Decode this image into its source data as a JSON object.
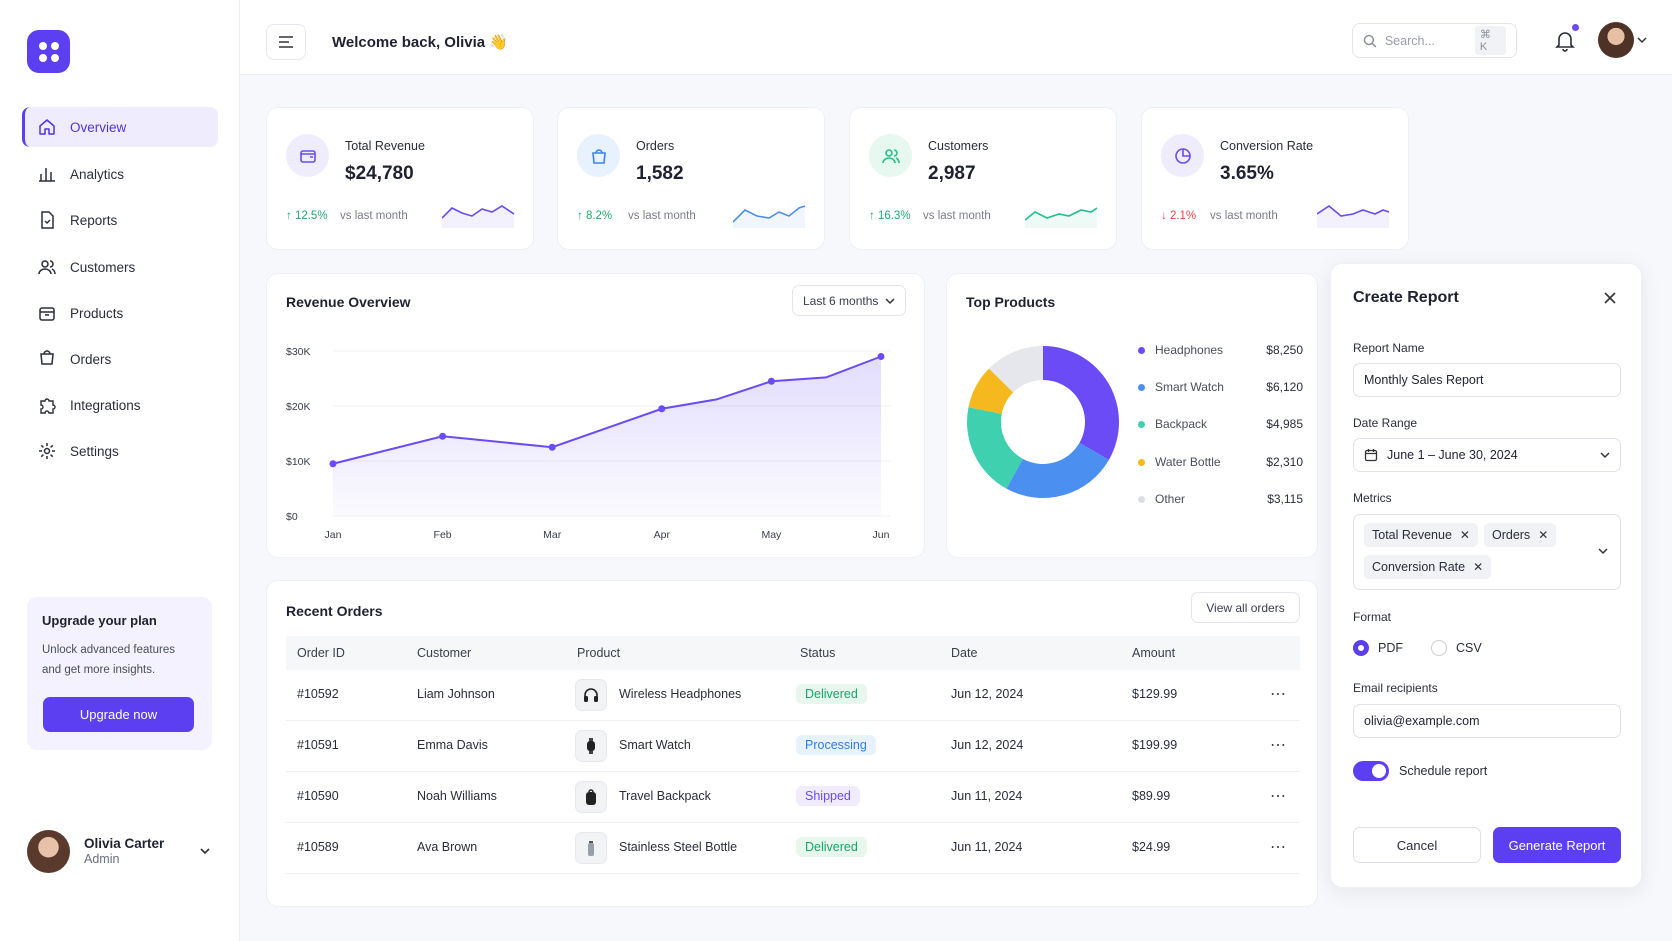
{
  "header": {
    "welcome": "Welcome back, Olivia 👋",
    "search_placeholder": "Search...",
    "search_shortcut": "⌘ K"
  },
  "sidebar": {
    "items": [
      {
        "label": "Overview",
        "icon": "home-icon"
      },
      {
        "label": "Analytics",
        "icon": "bar-chart-icon"
      },
      {
        "label": "Reports",
        "icon": "file-icon"
      },
      {
        "label": "Customers",
        "icon": "users-icon"
      },
      {
        "label": "Products",
        "icon": "box-icon"
      },
      {
        "label": "Orders",
        "icon": "cart-icon"
      },
      {
        "label": "Integrations",
        "icon": "puzzle-icon"
      },
      {
        "label": "Settings",
        "icon": "gear-icon"
      }
    ],
    "upgrade": {
      "title": "Upgrade your plan",
      "text": "Unlock advanced features and get more insights.",
      "button": "Upgrade now"
    },
    "user": {
      "name": "Olivia Carter",
      "role": "Admin"
    }
  },
  "stats": [
    {
      "label": "Total Revenue",
      "value": "$24,780",
      "change": "↑ 12.5%",
      "vs": "vs last month",
      "trend": "up",
      "icon": "wallet-icon",
      "color": "#6a4bf5"
    },
    {
      "label": "Orders",
      "value": "1,582",
      "change": "↑ 8.2%",
      "vs": "vs last month",
      "trend": "up",
      "icon": "bag-icon",
      "color": "#3b82f6"
    },
    {
      "label": "Customers",
      "value": "2,987",
      "change": "↑ 16.3%",
      "vs": "vs last month",
      "trend": "up",
      "icon": "users-icon",
      "color": "#22c08a"
    },
    {
      "label": "Conversion Rate",
      "value": "3.65%",
      "change": "↓ 2.1%",
      "vs": "vs last month",
      "trend": "down",
      "icon": "pie-icon",
      "color": "#6a4bf5"
    }
  ],
  "revenue": {
    "title": "Revenue Overview",
    "range": "Last 6 months",
    "chart_data": {
      "type": "area",
      "x": [
        "Jan",
        "Feb",
        "Mar",
        "Apr",
        "May",
        "Jun"
      ],
      "y_ticks": [
        "$30K",
        "$20K",
        "$10K",
        "$0"
      ],
      "points": [
        {
          "x": "Jan",
          "y": 9500
        },
        {
          "x": "Feb",
          "y": 14500
        },
        {
          "x": "Mar",
          "y": 12500
        },
        {
          "x": "Apr",
          "y": 19500
        },
        {
          "x": "Apr–May",
          "y": 21200
        },
        {
          "x": "May",
          "y": 24500
        },
        {
          "x": "May–Jun",
          "y": 25200
        },
        {
          "x": "Jun",
          "y": 29000
        }
      ],
      "ylim": [
        0,
        30000
      ]
    }
  },
  "top_products": {
    "title": "Top Products",
    "chart_data": {
      "type": "pie",
      "slices": [
        {
          "name": "Headphones",
          "value": 8250,
          "label": "$8,250",
          "color": "#6a4bf5"
        },
        {
          "name": "Smart Watch",
          "value": 6120,
          "label": "$6,120",
          "color": "#4b8ff0"
        },
        {
          "name": "Backpack",
          "value": 4985,
          "label": "$4,985",
          "color": "#3fd0b0"
        },
        {
          "name": "Water Bottle",
          "value": 2310,
          "label": "$2,310",
          "color": "#f5b91f"
        },
        {
          "name": "Other",
          "value": 3115,
          "label": "$3,115",
          "color": "#e6e7ec"
        }
      ]
    }
  },
  "orders": {
    "title": "Recent Orders",
    "view_all": "View all orders",
    "columns": [
      "Order ID",
      "Customer",
      "Product",
      "Status",
      "Date",
      "Amount"
    ],
    "rows": [
      {
        "id": "#10592",
        "customer": "Liam Johnson",
        "product": "Wireless Headphones",
        "status": "Delivered",
        "date": "Jun 12, 2024",
        "amount": "$129.99"
      },
      {
        "id": "#10591",
        "customer": "Emma Davis",
        "product": "Smart Watch",
        "status": "Processing",
        "date": "Jun 12, 2024",
        "amount": "$199.99"
      },
      {
        "id": "#10590",
        "customer": "Noah Williams",
        "product": "Travel Backpack",
        "status": "Shipped",
        "date": "Jun 11, 2024",
        "amount": "$89.99"
      },
      {
        "id": "#10589",
        "customer": "Ava Brown",
        "product": "Stainless Steel Bottle",
        "status": "Delivered",
        "date": "Jun 11, 2024",
        "amount": "$24.99"
      }
    ]
  },
  "panel": {
    "title": "Create Report",
    "name_label": "Report Name",
    "name_value": "Monthly Sales Report",
    "date_label": "Date Range",
    "date_value": "June 1 – June 30, 2024",
    "metrics_label": "Metrics",
    "metrics": [
      "Total Revenue",
      "Orders",
      "Conversion Rate"
    ],
    "format_label": "Format",
    "format_options": [
      "PDF",
      "CSV"
    ],
    "format_selected": "PDF",
    "email_label": "Email recipients",
    "email_value": "olivia@example.com",
    "schedule_label": "Schedule report",
    "schedule_on": true,
    "cancel": "Cancel",
    "generate": "Generate Report"
  },
  "colors": {
    "accent": "#5b3ff0"
  }
}
